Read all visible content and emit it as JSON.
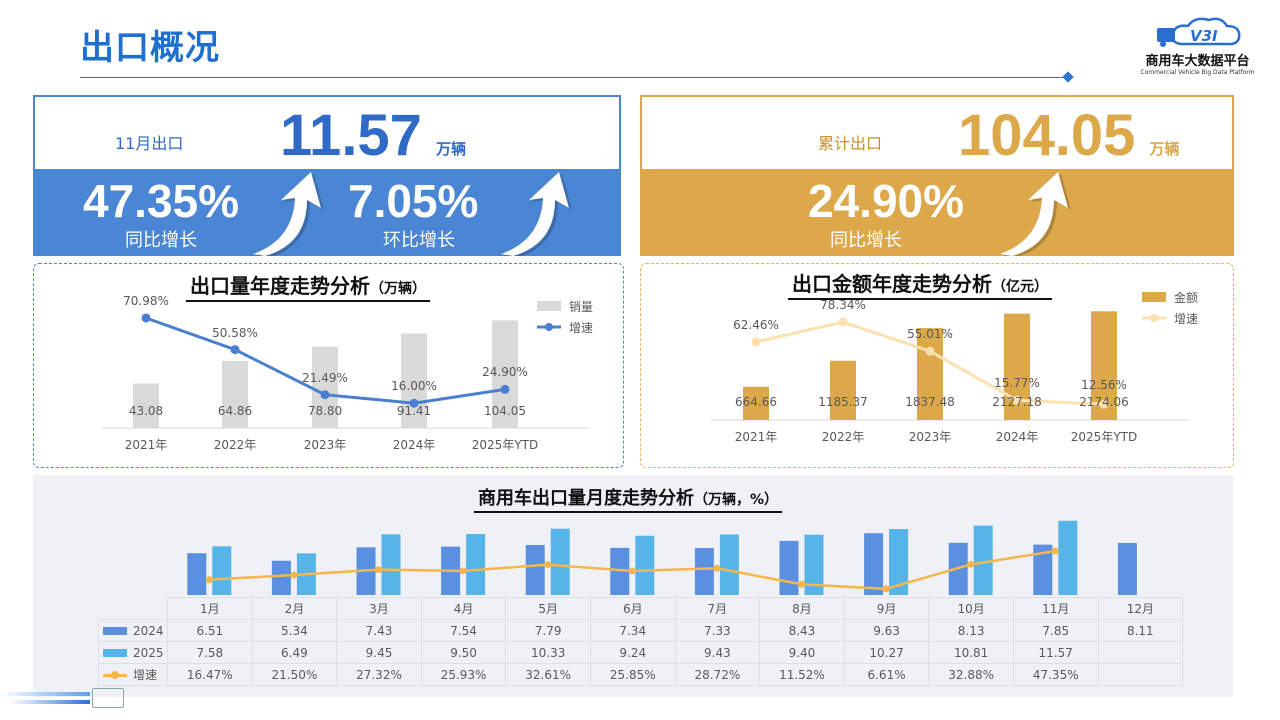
{
  "header": {
    "title": "出口概况",
    "logo_text": "V3I",
    "logo_cn": "商用车大数据平台",
    "logo_en": "Commercial Vehicle Big Data Platform"
  },
  "colors": {
    "blue": "#4a86d4",
    "gold": "#dca84a",
    "bar_gray": "#d9d9d9",
    "line_blue": "#4a7fd0",
    "line_light_gold": "#fde0b0",
    "bar_2024": "#5b8fe0",
    "bar_2025": "#56b4e9",
    "line_orange": "#f5b74a"
  },
  "kpi_left": {
    "label": "11月出口",
    "value": "11.57",
    "unit": "万辆",
    "yoy_value": "47.35%",
    "yoy_label": "同比增长",
    "mom_value": "7.05%",
    "mom_label": "环比增长",
    "icon": "up-arrow-icon"
  },
  "kpi_right": {
    "label": "累计出口",
    "value": "104.05",
    "unit": "万辆",
    "yoy_value": "24.90%",
    "yoy_label": "同比增长",
    "icon": "up-arrow-icon"
  },
  "chart_data": [
    {
      "type": "bar+line",
      "title": "出口量年度走势分析",
      "unit": "（万辆）",
      "categories": [
        "2021年",
        "2022年",
        "2023年",
        "2024年",
        "2025年YTD"
      ],
      "series": [
        {
          "name": "销量",
          "type": "bar",
          "values": [
            43.08,
            64.86,
            78.8,
            91.41,
            104.05
          ],
          "labels": [
            "43.08",
            "64.86",
            "78.80",
            "91.41",
            "104.05"
          ]
        },
        {
          "name": "增速",
          "type": "line",
          "values": [
            70.98,
            50.58,
            21.49,
            16.0,
            24.9
          ],
          "labels": [
            "70.98%",
            "50.58%",
            "21.49%",
            "16.00%",
            "24.90%"
          ]
        }
      ],
      "bar_ylim": [
        0,
        120
      ],
      "line_ylim": [
        0,
        80
      ],
      "legend": "top-right",
      "grid": false
    },
    {
      "type": "bar+line",
      "title": "出口金额年度走势分析",
      "unit": "（亿元）",
      "categories": [
        "2021年",
        "2022年",
        "2023年",
        "2024年",
        "2025年YTD"
      ],
      "series": [
        {
          "name": "金额",
          "type": "bar",
          "values": [
            664.66,
            1185.37,
            1837.48,
            2127.18,
            2174.06
          ],
          "labels": [
            "664.66",
            "1185.37",
            "1837.48",
            "2127.18",
            "2174.06"
          ]
        },
        {
          "name": "增速",
          "type": "line",
          "values": [
            62.46,
            78.34,
            55.01,
            15.77,
            12.56
          ],
          "labels": [
            "62.46%",
            "78.34%",
            "55.01%",
            "15.77%",
            "12.56%"
          ]
        }
      ],
      "bar_ylim": [
        0,
        2400
      ],
      "line_ylim": [
        0,
        80
      ],
      "legend": "top-right",
      "grid": false
    },
    {
      "type": "bar+line+table",
      "title": "商用车出口量月度走势分析",
      "unit": "（万辆，%）",
      "categories": [
        "1月",
        "2月",
        "3月",
        "4月",
        "5月",
        "6月",
        "7月",
        "8月",
        "9月",
        "10月",
        "11月",
        "12月"
      ],
      "series": [
        {
          "name": "2024",
          "type": "bar",
          "values": [
            6.51,
            5.34,
            7.43,
            7.54,
            7.79,
            7.34,
            7.33,
            8.43,
            9.63,
            8.13,
            7.85,
            8.11
          ],
          "labels": [
            "6.51",
            "5.34",
            "7.43",
            "7.54",
            "7.79",
            "7.34",
            "7.33",
            "8.43",
            "9.63",
            "8.13",
            "7.85",
            "8.11"
          ]
        },
        {
          "name": "2025",
          "type": "bar",
          "values": [
            7.58,
            6.49,
            9.45,
            9.5,
            10.33,
            9.24,
            9.43,
            9.4,
            10.27,
            10.81,
            11.57,
            null
          ],
          "labels": [
            "7.58",
            "6.49",
            "9.45",
            "9.50",
            "10.33",
            "9.24",
            "9.43",
            "9.40",
            "10.27",
            "10.81",
            "11.57",
            ""
          ]
        },
        {
          "name": "增速",
          "type": "line",
          "values": [
            16.47,
            21.5,
            27.32,
            25.93,
            32.61,
            25.85,
            28.72,
            11.52,
            6.61,
            32.88,
            47.35,
            null
          ],
          "labels": [
            "16.47%",
            "21.50%",
            "27.32%",
            "25.93%",
            "32.61%",
            "25.85%",
            "28.72%",
            "11.52%",
            "6.61%",
            "32.88%",
            "47.35%",
            ""
          ]
        }
      ],
      "bar_ylim": [
        0,
        12
      ],
      "line_ylim": [
        0,
        100
      ],
      "legend": "table-left",
      "grid": false
    }
  ]
}
